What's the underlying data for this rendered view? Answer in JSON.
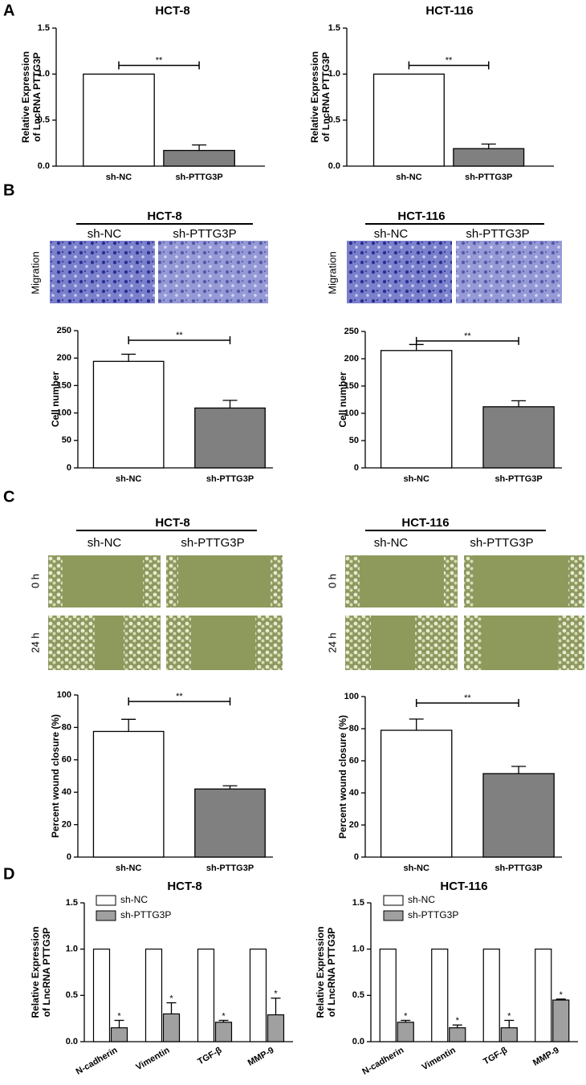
{
  "panel_labels": [
    "A",
    "B",
    "C",
    "D"
  ],
  "image_panels": [
    {
      "title": "HCT-8",
      "columns": [
        "sh-NC",
        "sh-PTTG3P"
      ],
      "rows": [
        "Migration"
      ]
    },
    {
      "title": "HCT-116",
      "columns": [
        "sh-NC",
        "sh-PTTG3P"
      ],
      "rows": [
        "Migration"
      ]
    },
    {
      "title": "HCT-8",
      "columns": [
        "sh-NC",
        "sh-PTTG3P"
      ],
      "rows": [
        "0 h",
        "24 h"
      ]
    },
    {
      "title": "HCT-116",
      "columns": [
        "sh-NC",
        "sh-PTTG3P"
      ],
      "rows": [
        "0 h",
        "24 h"
      ]
    }
  ],
  "chart_data": [
    {
      "type": "bar",
      "title": "HCT-8",
      "ylabel": [
        "Relative Expression",
        "of LncRNA PTTG3P"
      ],
      "categories": [
        "sh-NC",
        "sh-PTTG3P"
      ],
      "values": [
        1.0,
        0.17
      ],
      "errors": [
        0,
        0.06
      ],
      "colors": [
        "#ffffff",
        "#808080"
      ],
      "ylim": [
        0,
        1.5
      ],
      "yticks": [
        {
          "value": 0,
          "label": "0.0"
        },
        0.5,
        {
          "value": 1,
          "label": "1.0"
        },
        1.5
      ],
      "annotation": "**"
    },
    {
      "type": "bar",
      "title": "HCT-116",
      "ylabel": [
        "Relative Expression",
        "of LncRNA PTTG3P"
      ],
      "categories": [
        "sh-NC",
        "sh-PTTG3P"
      ],
      "values": [
        1.0,
        0.19
      ],
      "errors": [
        0,
        0.05
      ],
      "colors": [
        "#ffffff",
        "#808080"
      ],
      "ylim": [
        0,
        1.5
      ],
      "yticks": [
        {
          "value": 0,
          "label": "0.0"
        },
        0.5,
        {
          "value": 1,
          "label": "1.0"
        },
        1.5
      ],
      "annotation": "**"
    },
    {
      "type": "bar",
      "ylabel": [
        "Cell number"
      ],
      "categories": [
        "sh-NC",
        "sh-PTTG3P"
      ],
      "values": [
        194,
        109
      ],
      "errors": [
        13,
        14
      ],
      "colors": [
        "#ffffff",
        "#808080"
      ],
      "ylim": [
        0,
        250
      ],
      "yticks": [
        0,
        50,
        100,
        150,
        200,
        250
      ],
      "annotation": "**"
    },
    {
      "type": "bar",
      "ylabel": [
        "Cell number"
      ],
      "categories": [
        "sh-NC",
        "sh-PTTG3P"
      ],
      "values": [
        215,
        112
      ],
      "errors": [
        11,
        11
      ],
      "colors": [
        "#ffffff",
        "#808080"
      ],
      "ylim": [
        0,
        250
      ],
      "yticks": [
        0,
        50,
        100,
        150,
        200,
        250
      ],
      "annotation": "**"
    },
    {
      "type": "bar",
      "ylabel": [
        "Percent wound closure (%)"
      ],
      "categories": [
        "sh-NC",
        "sh-PTTG3P"
      ],
      "values": [
        77.5,
        42
      ],
      "errors": [
        7.5,
        2
      ],
      "colors": [
        "#ffffff",
        "#808080"
      ],
      "ylim": [
        0,
        100
      ],
      "yticks": [
        0,
        20,
        40,
        60,
        80,
        100
      ],
      "annotation": "**"
    },
    {
      "type": "bar",
      "ylabel": [
        "Percent wound closure (%)"
      ],
      "categories": [
        "sh-NC",
        "sh-PTTG3P"
      ],
      "values": [
        79,
        52
      ],
      "errors": [
        7,
        4.5
      ],
      "colors": [
        "#ffffff",
        "#808080"
      ],
      "ylim": [
        0,
        100
      ],
      "yticks": [
        0,
        20,
        40,
        60,
        80,
        100
      ],
      "annotation": "**"
    },
    {
      "type": "grouped_bar",
      "title": "HCT-8",
      "ylabel": [
        "Relative Expression",
        "of LncRNA PTTG3P"
      ],
      "categories": [
        "N-cadherin",
        "Vimentin",
        "TGF-β",
        "MMP-9"
      ],
      "legend": "upper left",
      "ylim": [
        0,
        1.5
      ],
      "yticks": [
        {
          "value": 0,
          "label": "0.0"
        },
        0.5,
        {
          "value": 1,
          "label": "1.0"
        },
        1.5
      ],
      "series": [
        {
          "name": "sh-NC",
          "color": "#ffffff",
          "values": [
            1,
            1,
            1,
            1
          ]
        },
        {
          "name": "sh-PTTG3P",
          "color": "#a0a0a0",
          "values": [
            0.15,
            0.3,
            0.21,
            0.29
          ],
          "errors": [
            0.08,
            0.12,
            0.02,
            0.18
          ],
          "annotations": [
            "*",
            "*",
            "*",
            "*"
          ]
        }
      ]
    },
    {
      "type": "grouped_bar",
      "title": "HCT-116",
      "ylabel": [
        "Relative Expression",
        "of LncRNA PTTG3P"
      ],
      "categories": [
        "N-cadherin",
        "Vimentin",
        "TGF-β",
        "MMP-9"
      ],
      "legend": "upper left",
      "ylim": [
        0,
        1.5
      ],
      "yticks": [
        {
          "value": 0,
          "label": "0.0"
        },
        0.5,
        {
          "value": 1,
          "label": "1.0"
        },
        1.5
      ],
      "series": [
        {
          "name": "sh-NC",
          "color": "#ffffff",
          "values": [
            1,
            1,
            1,
            1
          ]
        },
        {
          "name": "sh-PTTG3P",
          "color": "#a0a0a0",
          "values": [
            0.21,
            0.15,
            0.15,
            0.45
          ],
          "errors": [
            0.02,
            0.03,
            0.08,
            0.01
          ],
          "annotations": [
            "*",
            "*",
            "*",
            "*"
          ]
        }
      ]
    }
  ]
}
